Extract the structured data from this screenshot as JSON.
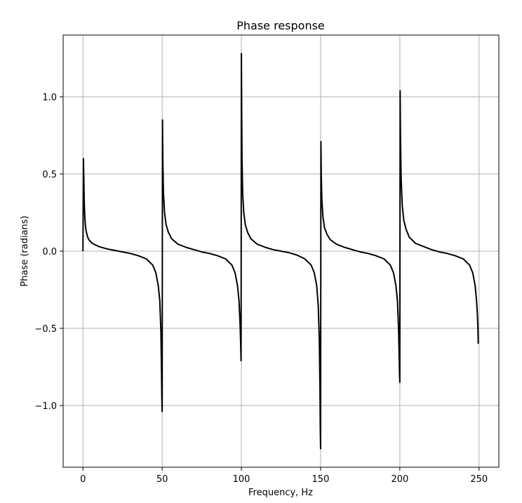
{
  "chart_data": {
    "type": "line",
    "title": "Phase response",
    "xlabel": "Frequency, Hz",
    "ylabel": "Phase (radians)",
    "xlim": [
      -12.5,
      262.5
    ],
    "ylim": [
      -1.4,
      1.4
    ],
    "xticks": [
      0,
      50,
      100,
      150,
      200,
      250
    ],
    "xtick_labels": [
      "0",
      "50",
      "100",
      "150",
      "200",
      "250"
    ],
    "yticks": [
      -1.0,
      -0.5,
      0.0,
      0.5,
      1.0
    ],
    "ytick_labels": [
      "−1.0",
      "−0.5",
      "0.0",
      "0.5",
      "1.0"
    ],
    "grid": true,
    "line_color": "#000000",
    "grid_color": "#b0b0b0",
    "series": [
      {
        "x": [
          0,
          0.3,
          0.6,
          0.8,
          1,
          1.3,
          1.6,
          2,
          3,
          4,
          6,
          8,
          10,
          15,
          20,
          25,
          30,
          35,
          40,
          44,
          46,
          47.5,
          48.5,
          49.2,
          49.6,
          49.8,
          50,
          50.2,
          50.4,
          50.8,
          51.5,
          52.5,
          54,
          56,
          60,
          65,
          70,
          75,
          80,
          85,
          90,
          94,
          96,
          97.5,
          98.5,
          99.2,
          99.6,
          99.8,
          100,
          100.2,
          100.4,
          100.8,
          101.5,
          102.5,
          104,
          106,
          110,
          115,
          120,
          125,
          130,
          135,
          140,
          144,
          146,
          147.5,
          148.5,
          149.2,
          149.6,
          149.8,
          150,
          150.2,
          150.4,
          150.8,
          151.5,
          152.5,
          154,
          156,
          160,
          165,
          170,
          175,
          180,
          185,
          190,
          194,
          196,
          197.5,
          198.5,
          199.2,
          199.6,
          199.8,
          200,
          200.2,
          200.4,
          200.8,
          201.5,
          202.5,
          204,
          206,
          210,
          215,
          220,
          225,
          230,
          235,
          240,
          244,
          246,
          247.5,
          248.5,
          249,
          249.3,
          249.5
        ],
        "y": [
          0.0,
          0.6,
          0.45,
          0.33,
          0.26,
          0.2,
          0.16,
          0.13,
          0.09,
          0.07,
          0.05,
          0.04,
          0.03,
          0.015,
          0.005,
          -0.005,
          -0.015,
          -0.03,
          -0.05,
          -0.09,
          -0.14,
          -0.22,
          -0.32,
          -0.52,
          -0.78,
          -0.96,
          -1.04,
          0.85,
          0.6,
          0.38,
          0.25,
          0.17,
          0.12,
          0.08,
          0.045,
          0.025,
          0.01,
          -0.005,
          -0.015,
          -0.03,
          -0.05,
          -0.09,
          -0.14,
          -0.22,
          -0.32,
          -0.48,
          -0.62,
          -0.71,
          1.28,
          0.9,
          0.6,
          0.38,
          0.25,
          0.17,
          0.12,
          0.08,
          0.045,
          0.025,
          0.01,
          0.0,
          -0.01,
          -0.025,
          -0.05,
          -0.09,
          -0.14,
          -0.22,
          -0.35,
          -0.58,
          -0.9,
          -1.15,
          -1.28,
          0.71,
          0.5,
          0.33,
          0.22,
          0.15,
          0.11,
          0.075,
          0.045,
          0.025,
          0.01,
          -0.005,
          -0.015,
          -0.03,
          -0.05,
          -0.09,
          -0.14,
          -0.22,
          -0.32,
          -0.5,
          -0.68,
          -0.79,
          -0.85,
          1.04,
          0.75,
          0.48,
          0.3,
          0.2,
          0.14,
          0.09,
          0.05,
          0.03,
          0.01,
          -0.005,
          -0.015,
          -0.03,
          -0.05,
          -0.09,
          -0.14,
          -0.22,
          -0.33,
          -0.42,
          -0.5,
          -0.6
        ]
      }
    ]
  }
}
